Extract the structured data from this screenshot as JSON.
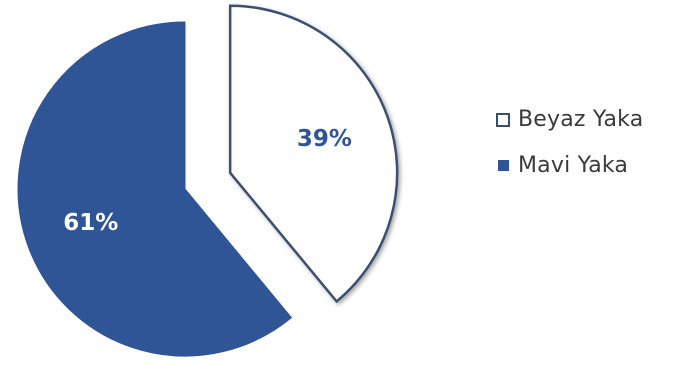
{
  "chart_data": {
    "type": "pie",
    "slices": [
      {
        "label": "Beyaz Yaka",
        "value": 39,
        "display": "39%",
        "fill": "#ffffff",
        "stroke": "#3a4f70",
        "exploded": true
      },
      {
        "label": "Mavi Yaka",
        "value": 61,
        "display": "61%",
        "fill": "#2f5597",
        "stroke": "#2f5597",
        "exploded": false
      }
    ],
    "legend_position": "right",
    "label_color_on_white": "#2f5597",
    "label_color_on_blue": "#ffffff"
  }
}
